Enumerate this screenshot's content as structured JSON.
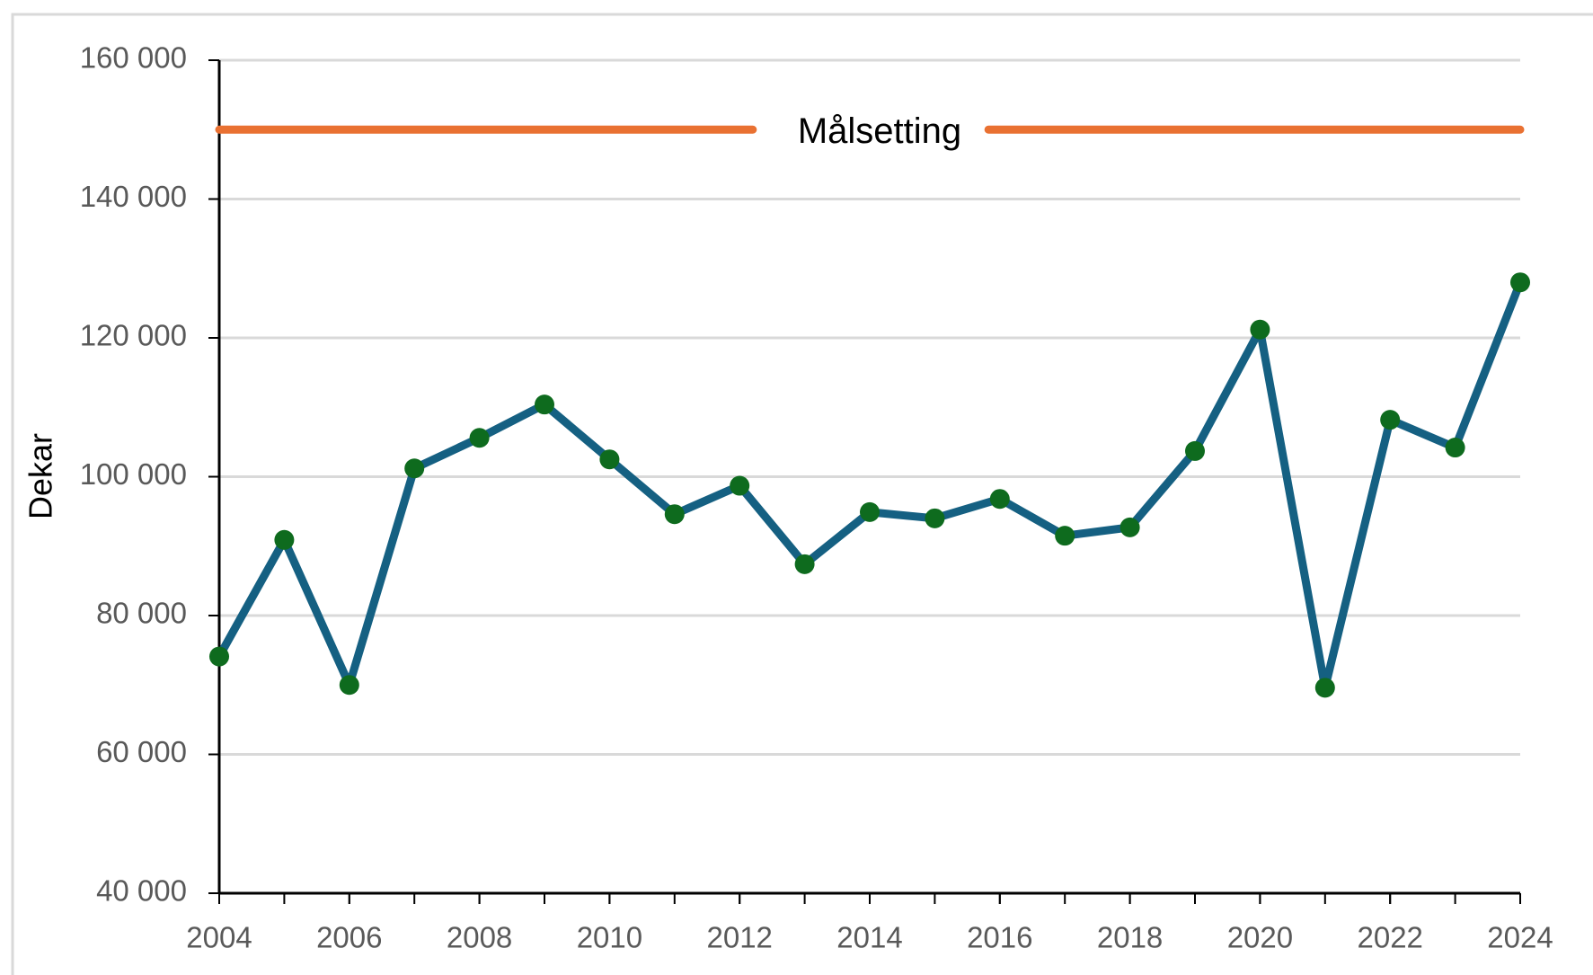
{
  "chart_data": {
    "type": "line",
    "ylabel": "Dekar",
    "x": [
      2004,
      2005,
      2006,
      2007,
      2008,
      2009,
      2010,
      2011,
      2012,
      2013,
      2014,
      2015,
      2016,
      2017,
      2018,
      2019,
      2020,
      2021,
      2022,
      2023,
      2024
    ],
    "series": [
      {
        "color": "#156082",
        "marker_color": "#0e6b1e",
        "values": [
          74100,
          90900,
          70000,
          101200,
          105600,
          110400,
          102500,
          94600,
          98700,
          87400,
          94900,
          94000,
          96800,
          91500,
          92700,
          103700,
          121200,
          69600,
          108200,
          104200,
          128000
        ]
      }
    ],
    "target": {
      "label": "Målsetting",
      "value": 150000,
      "color": "#e97132"
    },
    "xlim": [
      2004,
      2024
    ],
    "xticks": [
      2004,
      2006,
      2008,
      2010,
      2012,
      2014,
      2016,
      2018,
      2020,
      2022,
      2024
    ],
    "ylim": [
      40000,
      160000
    ],
    "yticks": [
      {
        "value": 40000,
        "label": "40 000"
      },
      {
        "value": 60000,
        "label": "60 000"
      },
      {
        "value": 80000,
        "label": "80 000"
      },
      {
        "value": 100000,
        "label": "100 000"
      },
      {
        "value": 120000,
        "label": "120 000"
      },
      {
        "value": 140000,
        "label": "140 000"
      },
      {
        "value": 160000,
        "label": "160 000"
      }
    ],
    "grid": true
  }
}
